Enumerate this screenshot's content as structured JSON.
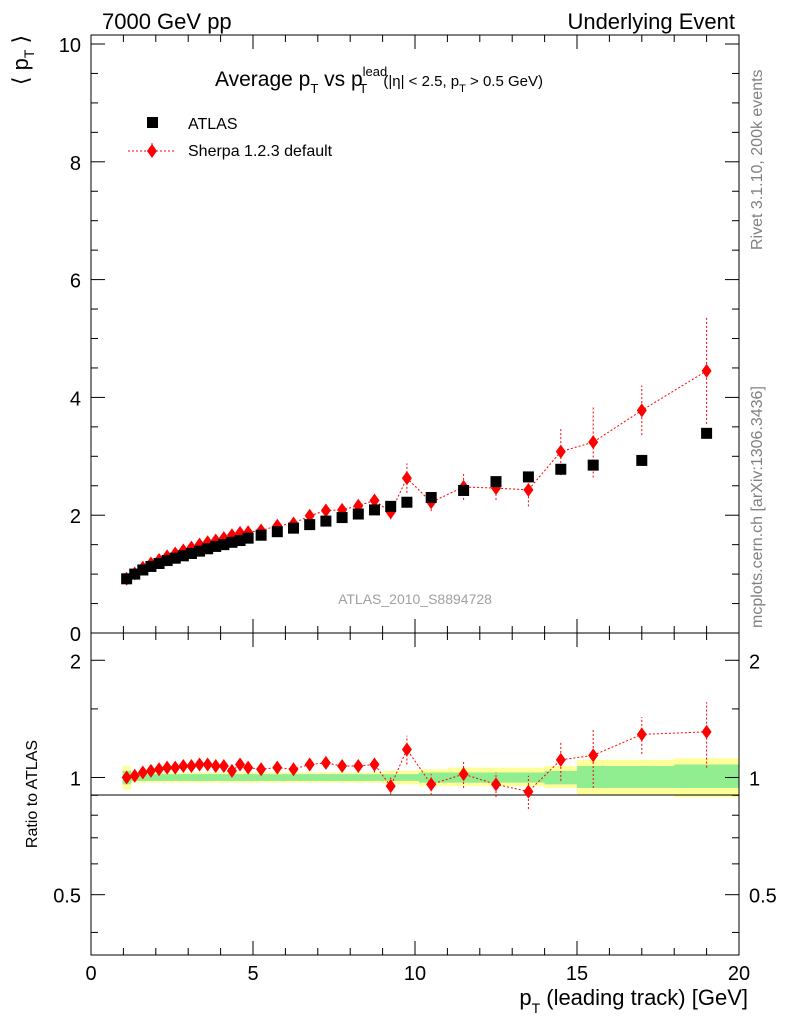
{
  "header": {
    "left": "7000 GeV pp",
    "right": "Underlying Event"
  },
  "side_labels": {
    "rivet": "Rivet 3.1.10,  200k events",
    "mcplots": "mcplots.cern.ch [arXiv:1306.3436]"
  },
  "watermark": "ATLAS_2010_S8894728",
  "chart_data": [
    {
      "type": "scatter",
      "title_parts": {
        "main": "Average p",
        "sub_t1": "T",
        "vs": " vs p",
        "sup_lead": "lead",
        "sub_t2": "T",
        "cut_open": " (|η| < 2.5, p",
        "sub_t3": "T",
        "cut_close": " > 0.5 GeV)"
      },
      "ylabel": "⟨ p",
      "ylabel_sub": "T",
      "ylabel_close": " ⟩",
      "xlim": [
        0,
        20
      ],
      "ylim": [
        0,
        10
      ],
      "yticks": [
        0,
        2,
        4,
        6,
        8,
        10
      ],
      "ytick_labels": [
        "0",
        "2",
        "4",
        "6",
        "8",
        "10"
      ],
      "legend": {
        "placement": "top-left",
        "entries": [
          "ATLAS",
          "Sherpa 1.2.3 default"
        ]
      },
      "series": [
        {
          "name": "ATLAS",
          "marker": "square",
          "color": "#000000",
          "x": [
            1.1,
            1.35,
            1.6,
            1.85,
            2.1,
            2.35,
            2.6,
            2.85,
            3.1,
            3.35,
            3.6,
            3.85,
            4.1,
            4.35,
            4.6,
            4.85,
            5.25,
            5.75,
            6.25,
            6.75,
            7.25,
            7.75,
            8.25,
            8.75,
            9.25,
            9.75,
            10.5,
            11.5,
            12.5,
            13.5,
            14.5,
            15.5,
            17.0,
            19.0
          ],
          "y": [
            0.92,
            1.0,
            1.07,
            1.13,
            1.18,
            1.23,
            1.27,
            1.31,
            1.35,
            1.39,
            1.43,
            1.47,
            1.5,
            1.54,
            1.57,
            1.61,
            1.66,
            1.72,
            1.78,
            1.84,
            1.9,
            1.96,
            2.02,
            2.09,
            2.15,
            2.22,
            2.3,
            2.42,
            2.57,
            2.65,
            2.78,
            2.85,
            2.93,
            3.39
          ]
        },
        {
          "name": "Sherpa 1.2.3 default",
          "marker": "diamond",
          "color": "#ff0000",
          "line": "dotted",
          "x": [
            1.1,
            1.35,
            1.6,
            1.85,
            2.1,
            2.35,
            2.6,
            2.85,
            3.1,
            3.35,
            3.6,
            3.85,
            4.1,
            4.35,
            4.6,
            4.85,
            5.25,
            5.75,
            6.25,
            6.75,
            7.25,
            7.75,
            8.25,
            8.75,
            9.25,
            9.75,
            10.5,
            11.5,
            12.5,
            13.5,
            14.5,
            15.5,
            17.0,
            19.0
          ],
          "y": [
            0.92,
            1.01,
            1.11,
            1.18,
            1.24,
            1.3,
            1.35,
            1.4,
            1.45,
            1.5,
            1.54,
            1.57,
            1.61,
            1.66,
            1.7,
            1.71,
            1.74,
            1.82,
            1.86,
            1.99,
            2.08,
            2.09,
            2.16,
            2.25,
            2.05,
            2.63,
            2.22,
            2.48,
            2.46,
            2.43,
            3.08,
            3.24,
            3.78,
            4.45
          ],
          "err": [
            0.02,
            0.02,
            0.02,
            0.02,
            0.02,
            0.02,
            0.02,
            0.02,
            0.02,
            0.02,
            0.02,
            0.03,
            0.03,
            0.03,
            0.03,
            0.03,
            0.03,
            0.04,
            0.04,
            0.05,
            0.06,
            0.07,
            0.08,
            0.1,
            0.12,
            0.25,
            0.15,
            0.22,
            0.2,
            0.28,
            0.4,
            0.6,
            0.42,
            0.9
          ]
        }
      ]
    },
    {
      "type": "scatter",
      "ylabel": "Ratio to ATLAS",
      "xlabel": "p",
      "xlabel_sub": "T",
      "xlabel_rest": " (leading track) [GeV]",
      "xlim": [
        0,
        20
      ],
      "ylim": [
        0.35,
        2.35
      ],
      "ylog": true,
      "xticks": [
        0,
        5,
        10,
        15,
        20
      ],
      "xtick_labels": [
        "0",
        "5",
        "10",
        "15",
        "20"
      ],
      "yticks": [
        0.5,
        1,
        2
      ],
      "ytick_labels": [
        "0.5",
        "1",
        "2"
      ],
      "band_inner": {
        "color": "#90ee90",
        "lo": [
          0.96,
          0.98,
          0.98,
          0.98,
          0.98,
          0.98,
          0.98,
          0.98,
          0.98,
          0.98,
          0.98,
          0.98,
          0.98,
          0.98,
          0.98,
          0.98,
          0.98,
          0.98,
          0.98,
          0.98,
          0.98,
          0.98,
          0.98,
          0.98,
          0.98,
          0.98,
          0.97,
          0.97,
          0.97,
          0.97,
          0.96,
          0.94,
          0.94,
          0.94
        ],
        "hi": [
          1.04,
          1.02,
          1.02,
          1.02,
          1.02,
          1.02,
          1.02,
          1.02,
          1.02,
          1.02,
          1.02,
          1.02,
          1.02,
          1.02,
          1.02,
          1.02,
          1.02,
          1.02,
          1.02,
          1.02,
          1.02,
          1.02,
          1.02,
          1.02,
          1.02,
          1.02,
          1.03,
          1.03,
          1.03,
          1.03,
          1.04,
          1.07,
          1.07,
          1.08
        ]
      },
      "band_outer": {
        "color": "#ffff99",
        "lo": [
          0.93,
          0.97,
          0.97,
          0.97,
          0.97,
          0.97,
          0.97,
          0.97,
          0.97,
          0.97,
          0.97,
          0.97,
          0.97,
          0.97,
          0.97,
          0.97,
          0.97,
          0.97,
          0.97,
          0.97,
          0.97,
          0.97,
          0.97,
          0.97,
          0.96,
          0.96,
          0.95,
          0.95,
          0.95,
          0.95,
          0.94,
          0.9,
          0.9,
          0.89
        ],
        "hi": [
          1.07,
          1.03,
          1.03,
          1.03,
          1.03,
          1.03,
          1.03,
          1.03,
          1.03,
          1.03,
          1.03,
          1.03,
          1.03,
          1.03,
          1.03,
          1.03,
          1.03,
          1.03,
          1.03,
          1.03,
          1.03,
          1.03,
          1.03,
          1.03,
          1.04,
          1.04,
          1.05,
          1.06,
          1.06,
          1.06,
          1.07,
          1.11,
          1.11,
          1.12
        ]
      },
      "series": [
        {
          "name": "Sherpa 1.2.3 default",
          "marker": "diamond",
          "color": "#ff0000",
          "line": "dotted",
          "x": [
            1.1,
            1.35,
            1.6,
            1.85,
            2.1,
            2.35,
            2.6,
            2.85,
            3.1,
            3.35,
            3.6,
            3.85,
            4.1,
            4.35,
            4.6,
            4.85,
            5.25,
            5.75,
            6.25,
            6.75,
            7.25,
            7.75,
            8.25,
            8.75,
            9.25,
            9.75,
            10.5,
            11.5,
            12.5,
            13.5,
            14.5,
            15.5,
            17.0,
            19.0
          ],
          "y": [
            1.0,
            1.01,
            1.03,
            1.04,
            1.05,
            1.06,
            1.06,
            1.07,
            1.07,
            1.08,
            1.08,
            1.07,
            1.07,
            1.04,
            1.08,
            1.06,
            1.05,
            1.06,
            1.05,
            1.08,
            1.09,
            1.07,
            1.07,
            1.08,
            0.95,
            1.18,
            0.96,
            1.02,
            0.96,
            0.92,
            1.11,
            1.14,
            1.29,
            1.31
          ],
          "err": [
            0.02,
            0.02,
            0.02,
            0.02,
            0.02,
            0.02,
            0.02,
            0.02,
            0.02,
            0.02,
            0.02,
            0.02,
            0.02,
            0.02,
            0.02,
            0.02,
            0.02,
            0.02,
            0.02,
            0.03,
            0.03,
            0.03,
            0.04,
            0.05,
            0.05,
            0.1,
            0.06,
            0.08,
            0.07,
            0.09,
            0.13,
            0.2,
            0.14,
            0.25
          ]
        }
      ]
    }
  ]
}
